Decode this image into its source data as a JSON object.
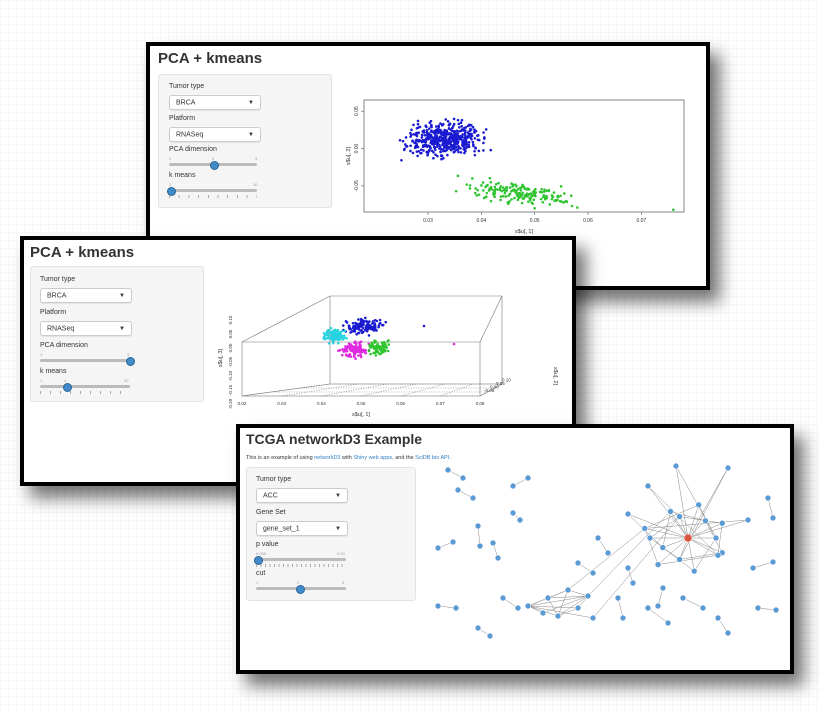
{
  "window1": {
    "title": "PCA + kmeans",
    "tumor_label": "Tumor type",
    "tumor_value": "BRCA",
    "platform_label": "Platform",
    "platform_value": "RNASeq",
    "pca_label": "PCA dimension",
    "pca_min": "1",
    "pca_value": "2",
    "pca_max": "3",
    "k_label": "k means",
    "k_min": "1",
    "k_max": "10",
    "chart_data": {
      "type": "scatter",
      "xlabel": "s$u[, 1]",
      "ylabel": "s$u[, 2]",
      "xticks": [
        "0.03",
        "0.04",
        "0.05",
        "0.06",
        "0.07"
      ],
      "yticks": [
        "-0.05",
        "0.00",
        "0.05"
      ],
      "xlim": [
        0.018,
        0.078
      ],
      "ylim": [
        -0.085,
        0.065
      ],
      "series": [
        {
          "color": "#1a1ad1",
          "center": [
            0.033,
            0.012
          ],
          "spread": [
            0.006,
            0.02
          ],
          "count": 480
        },
        {
          "color": "#2fc42f",
          "center": [
            0.041,
            -0.055
          ],
          "spread": [
            0.006,
            0.012
          ],
          "count": 170
        }
      ],
      "outliers": [
        [
          0.076,
          -0.082
        ],
        [
          0.057,
          -0.077
        ],
        [
          0.058,
          -0.079
        ],
        [
          0.05,
          -0.08
        ]
      ]
    }
  },
  "window2": {
    "title": "PCA + kmeans",
    "tumor_label": "Tumor type",
    "tumor_value": "BRCA",
    "platform_label": "Platform",
    "platform_value": "RNASeq",
    "pca_label": "PCA dimension",
    "pca_min": "1",
    "pca_value": "3",
    "k_label": "k means",
    "k_min": "1",
    "k_value": "4",
    "k_max": "10",
    "chart_data": {
      "type": "scatter",
      "xlabel": "s$u[, 1]",
      "ylabel": "s$u[, 3]",
      "zlabel": "s$u[, 2]",
      "xticks": [
        "0.02",
        "0.03",
        "0.04",
        "0.05",
        "0.06",
        "0.07",
        "0.08"
      ],
      "yticks": [
        "0.10",
        "0.05",
        "0.00",
        "-0.05",
        "-0.10",
        "-0.15",
        "-0.20"
      ],
      "zticks": [
        "-0.05",
        "0.00",
        "0.05",
        "0.10"
      ],
      "series": [
        {
          "color": "#1a1ad1",
          "count": 120
        },
        {
          "color": "#27d3e0",
          "count": 110
        },
        {
          "color": "#e02ae0",
          "count": 110
        },
        {
          "color": "#2fc42f",
          "count": 80
        }
      ]
    }
  },
  "window3": {
    "title": "TCGA networkD3 Example",
    "intro_prefix": "This is an example of using ",
    "intro_link1": "networkD3",
    "intro_mid1": " with ",
    "intro_link2": "Shiny web apps",
    "intro_mid2": ", and the ",
    "intro_link3": "SciDB bio API",
    "intro_suffix": ".",
    "tumor_label": "Tumor type",
    "tumor_value": "ACC",
    "gene_label": "Gene Set",
    "gene_value": "gene_set_1",
    "p_label": "p value",
    "p_min": "0.000",
    "p_max": "0.10",
    "cut_label": "cut",
    "cut_min": "1",
    "cut_value": "2",
    "cut_max": "3"
  }
}
